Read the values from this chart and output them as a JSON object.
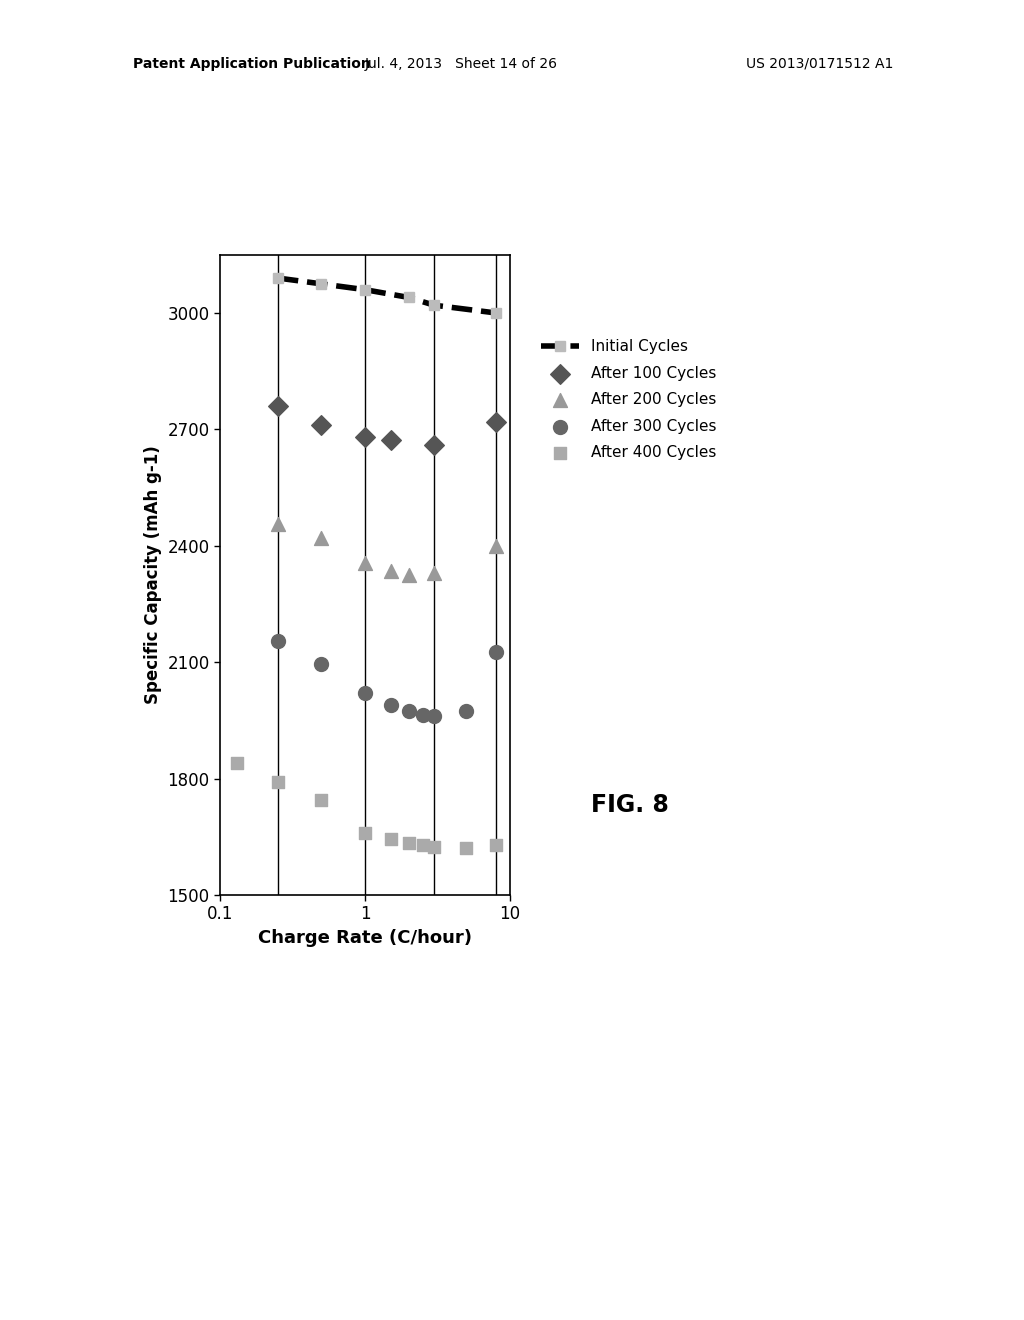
{
  "header_left": "Patent Application Publication",
  "header_mid": "Jul. 4, 2013   Sheet 14 of 26",
  "header_right": "US 2013/0171512 A1",
  "fig_label": "FIG. 8",
  "xlabel": "Charge Rate (C/hour)",
  "ylabel": "Specific Capacity (mAh g-1)",
  "ylim": [
    1500,
    3150
  ],
  "xlim": [
    0.1,
    10
  ],
  "yticks": [
    1500,
    1800,
    2100,
    2400,
    2700,
    3000
  ],
  "ytick_labels": [
    "1500",
    "1800",
    "2100",
    "2400",
    "2700",
    "3000"
  ],
  "vertical_lines": [
    0.25,
    1.0,
    3.0,
    8.0
  ],
  "initial_cycles": {
    "x": [
      0.25,
      0.5,
      1.0,
      2.0,
      3.0,
      8.0
    ],
    "y": [
      3090,
      3075,
      3060,
      3040,
      3020,
      3000
    ],
    "color": "#000000",
    "linewidth": 4.0,
    "linestyle": "--",
    "marker": "s",
    "markersize": 7,
    "marker_facecolor": "#bbbbbb",
    "marker_edgecolor": "#bbbbbb",
    "label": "Initial Cycles"
  },
  "after_100": {
    "x": [
      0.25,
      0.5,
      1.0,
      1.5,
      3.0,
      8.0
    ],
    "y": [
      2760,
      2710,
      2680,
      2672,
      2660,
      2720
    ],
    "color": "#555555",
    "marker": "D",
    "markersize": 10,
    "label": "After 100 Cycles"
  },
  "after_200": {
    "x": [
      0.25,
      0.5,
      1.0,
      1.5,
      2.0,
      3.0,
      8.0
    ],
    "y": [
      2455,
      2420,
      2355,
      2335,
      2325,
      2330,
      2400
    ],
    "color": "#999999",
    "marker": "^",
    "markersize": 10,
    "label": "After 200 Cycles"
  },
  "after_300": {
    "x": [
      0.25,
      0.5,
      1.0,
      1.5,
      2.0,
      2.5,
      3.0,
      5.0,
      8.0
    ],
    "y": [
      2155,
      2095,
      2020,
      1990,
      1975,
      1965,
      1960,
      1975,
      2125
    ],
    "color": "#666666",
    "marker": "o",
    "markersize": 10,
    "label": "After 300 Cycles"
  },
  "after_400": {
    "x": [
      0.13,
      0.25,
      0.5,
      1.0,
      1.5,
      2.0,
      2.5,
      3.0,
      5.0,
      8.0
    ],
    "y": [
      1840,
      1790,
      1745,
      1660,
      1645,
      1635,
      1628,
      1623,
      1620,
      1628
    ],
    "color": "#aaaaaa",
    "marker": "s",
    "markersize": 8,
    "label": "After 400 Cycles"
  },
  "background_color": "#ffffff"
}
